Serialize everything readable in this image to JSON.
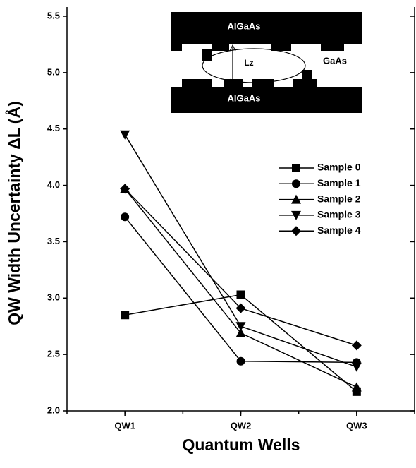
{
  "chart_data": {
    "type": "line",
    "y_label": "QW Width Uncertainty ΔL (Å)",
    "x_label": "Quantum Wells",
    "categories": [
      "QW1",
      "QW2",
      "QW3"
    ],
    "series": [
      {
        "name": "Sample 0",
        "color": "#000000",
        "marker": "square",
        "values": [
          2.85,
          3.03,
          2.17
        ]
      },
      {
        "name": "Sample 1",
        "color": "#000000",
        "marker": "circle",
        "values": [
          3.72,
          2.44,
          2.43
        ]
      },
      {
        "name": "Sample 2",
        "color": "#000000",
        "marker": "triangle-up",
        "values": [
          3.97,
          2.69,
          2.21
        ]
      },
      {
        "name": "Sample 3",
        "color": "#000000",
        "marker": "triangle-down",
        "values": [
          4.45,
          2.75,
          2.39
        ]
      },
      {
        "name": "Sample 4",
        "color": "#000000",
        "marker": "diamond",
        "values": [
          3.97,
          2.91,
          2.58
        ]
      }
    ],
    "ylim": [
      2.0,
      5.5
    ],
    "yticks": [
      {
        "value": 2,
        "label": "2.0"
      },
      2.5,
      {
        "value": 3,
        "label": "3.0"
      },
      3.5,
      {
        "value": 4,
        "label": "4.0"
      },
      4.5,
      {
        "value": 5,
        "label": "5.0"
      },
      5.5
    ],
    "legend": "right",
    "inset_labels": {
      "top_layer": "AlGaAs",
      "bottom_layer": "AlGaAs",
      "well": "GaAs",
      "width": "Lz"
    }
  }
}
